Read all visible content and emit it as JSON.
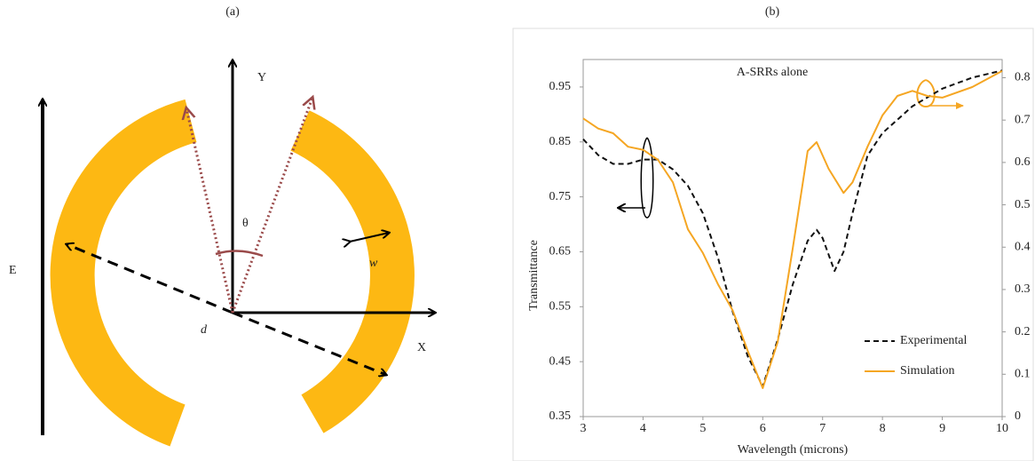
{
  "panels": [
    "(a)",
    "(b)"
  ],
  "diagram": {
    "labels": {
      "y_axis": "Y",
      "x_axis": "X",
      "field": "E",
      "angle": "θ",
      "width": "w",
      "diameter": "d"
    }
  },
  "chart_data": {
    "type": "line",
    "annotation": "A-SRRs alone",
    "x_label": "Wavelength  (microns)",
    "y_label": "Transmittance",
    "xlim": [
      3,
      10
    ],
    "xticks": [
      3,
      4,
      5,
      6,
      7,
      8,
      9,
      10
    ],
    "ylim": [
      0.35,
      1.0
    ],
    "yticks": [
      0.35,
      0.45,
      0.55,
      0.65,
      0.75,
      0.85,
      0.95
    ],
    "y2lim": [
      0,
      0.843
    ],
    "y2ticks": [
      0,
      0.1,
      0.2,
      0.3,
      0.4,
      0.5,
      0.6,
      0.7,
      0.8
    ],
    "legend": "lower right",
    "series": [
      {
        "name": "Experimental",
        "color": "#111111",
        "dash": true,
        "x": [
          3,
          3.25,
          3.5,
          3.75,
          4,
          4.25,
          4.5,
          4.75,
          5,
          5.25,
          5.5,
          5.75,
          6,
          6.25,
          6.5,
          6.75,
          6.9,
          7,
          7.2,
          7.35,
          7.5,
          7.75,
          8,
          8.5,
          9,
          9.5,
          10
        ],
        "values": [
          0.855,
          0.826,
          0.81,
          0.81,
          0.818,
          0.818,
          0.8,
          0.77,
          0.72,
          0.64,
          0.54,
          0.46,
          0.405,
          0.49,
          0.59,
          0.67,
          0.69,
          0.675,
          0.615,
          0.65,
          0.72,
          0.825,
          0.866,
          0.915,
          0.947,
          0.967,
          0.98
        ]
      },
      {
        "name": "Simulation",
        "color": "#f5a623",
        "axis": "y2",
        "x": [
          3,
          3.25,
          3.5,
          3.75,
          4,
          4.25,
          4.5,
          4.75,
          5,
          5.25,
          5.5,
          5.75,
          6,
          6.25,
          6.5,
          6.75,
          6.9,
          7.1,
          7.35,
          7.5,
          7.75,
          8,
          8.25,
          8.5,
          8.75,
          9,
          9.5,
          10
        ],
        "values": [
          0.704,
          0.68,
          0.669,
          0.637,
          0.63,
          0.606,
          0.553,
          0.442,
          0.386,
          0.313,
          0.25,
          0.155,
          0.067,
          0.176,
          0.396,
          0.627,
          0.648,
          0.585,
          0.528,
          0.553,
          0.637,
          0.711,
          0.757,
          0.769,
          0.757,
          0.753,
          0.778,
          0.816
        ]
      }
    ]
  }
}
